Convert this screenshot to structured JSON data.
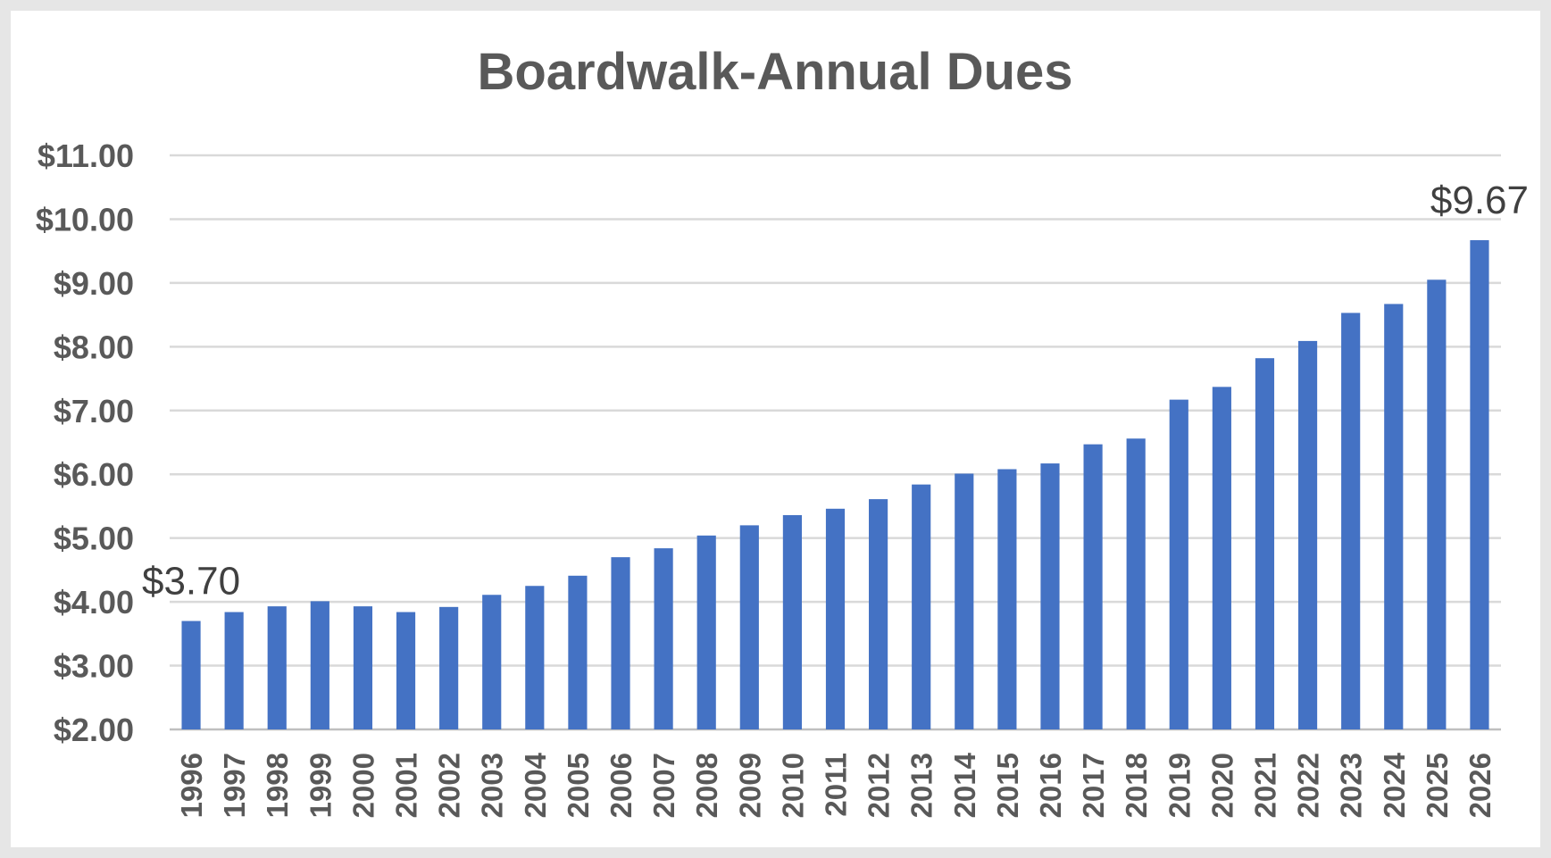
{
  "chart_data": {
    "type": "bar",
    "title": "Boardwalk-Annual Dues",
    "xlabel": "",
    "ylabel": "",
    "ylim": [
      2,
      11
    ],
    "y_tick_values": [
      2,
      3,
      4,
      5,
      6,
      7,
      8,
      9,
      10,
      11
    ],
    "y_tick_labels": [
      "$2.00",
      "$3.00",
      "$4.00",
      "$5.00",
      "$6.00",
      "$7.00",
      "$8.00",
      "$9.00",
      "$10.00",
      "$11.00"
    ],
    "categories": [
      "1996",
      "1997",
      "1998",
      "1999",
      "2000",
      "2001",
      "2002",
      "2003",
      "2004",
      "2005",
      "2006",
      "2007",
      "2008",
      "2009",
      "2010",
      "2011",
      "2012",
      "2013",
      "2014",
      "2015",
      "2016",
      "2017",
      "2018",
      "2019",
      "2020",
      "2021",
      "2022",
      "2023",
      "2024",
      "2025",
      "2026"
    ],
    "values": [
      3.7,
      3.84,
      3.93,
      4.01,
      3.93,
      3.84,
      3.92,
      4.11,
      4.25,
      4.41,
      4.7,
      4.84,
      5.04,
      5.2,
      5.36,
      5.46,
      5.61,
      5.84,
      6.01,
      6.08,
      6.17,
      6.47,
      6.56,
      7.17,
      7.37,
      7.82,
      8.09,
      8.53,
      8.67,
      9.05,
      9.67
    ],
    "data_labels": [
      {
        "category": "1996",
        "text": "$3.70"
      },
      {
        "category": "2026",
        "text": "$9.67"
      }
    ],
    "grid": true,
    "legend": "none",
    "colors": {
      "bar": "#4472c4",
      "grid": "#d9d9d9",
      "text": "#595959"
    }
  }
}
